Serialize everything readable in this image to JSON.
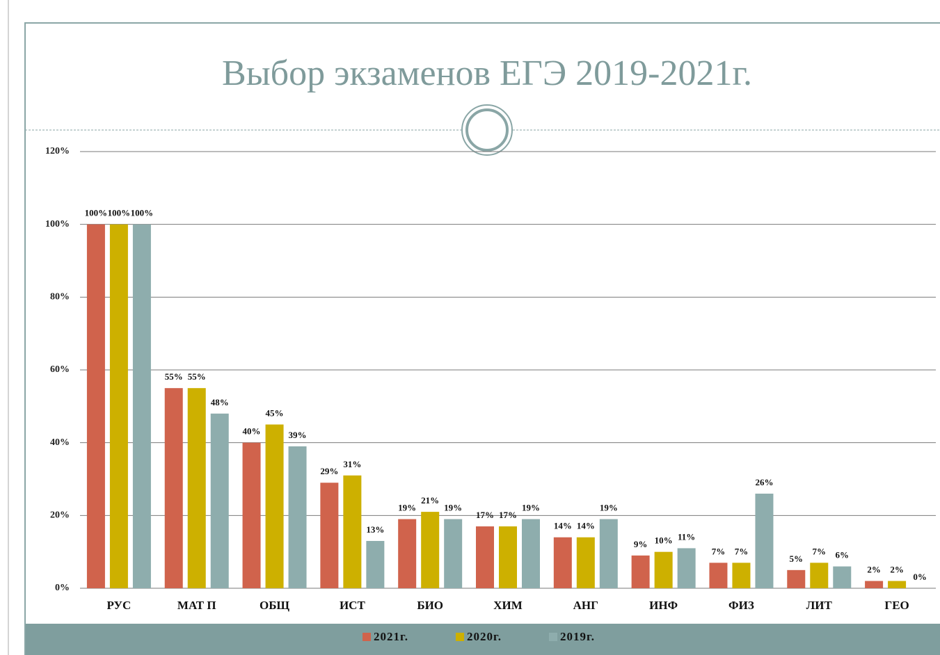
{
  "chart_data": {
    "type": "bar",
    "title": "Выбор экзаменов ЕГЭ 2019-2021г.",
    "categories": [
      "РУС",
      "МАТ П",
      "ОБЩ",
      "ИСТ",
      "БИО",
      "ХИМ",
      "АНГ",
      "ИНФ",
      "ФИЗ",
      "ЛИТ",
      "ГЕО"
    ],
    "series": [
      {
        "name": "2021г.",
        "color": "#d0634c",
        "values": [
          100,
          55,
          40,
          29,
          19,
          17,
          14,
          9,
          7,
          5,
          2
        ],
        "value_labels": [
          "100%",
          "55%",
          "40%",
          "29%",
          "19%",
          "17%",
          "14%",
          "9%",
          "7%",
          "5%",
          "2%"
        ]
      },
      {
        "name": "2020г.",
        "color": "#cdb000",
        "values": [
          100,
          55,
          45,
          31,
          21,
          17,
          14,
          10,
          7,
          7,
          2
        ],
        "value_labels": [
          "100%",
          "55%",
          "45%",
          "31%",
          "21%",
          "17%",
          "14%",
          "10%",
          "7%",
          "7%",
          "2%"
        ]
      },
      {
        "name": "2019г.",
        "color": "#8eadad",
        "values": [
          100,
          48,
          39,
          13,
          19,
          19,
          19,
          11,
          26,
          6,
          0
        ],
        "value_labels": [
          "100%",
          "48%",
          "39%",
          "13%",
          "19%",
          "19%",
          "19%",
          "11%",
          "26%",
          "6%",
          "0%"
        ]
      }
    ],
    "ylim": [
      0,
      120
    ],
    "yticks": [
      {
        "value": 0,
        "label": "0%"
      },
      {
        "value": 20,
        "label": "20%"
      },
      {
        "value": 40,
        "label": "40%"
      },
      {
        "value": 60,
        "label": "60%"
      },
      {
        "value": 80,
        "label": "80%"
      },
      {
        "value": 100,
        "label": "100%"
      },
      {
        "value": 120,
        "label": "120%"
      }
    ],
    "grid": true,
    "legend": "bottom"
  }
}
